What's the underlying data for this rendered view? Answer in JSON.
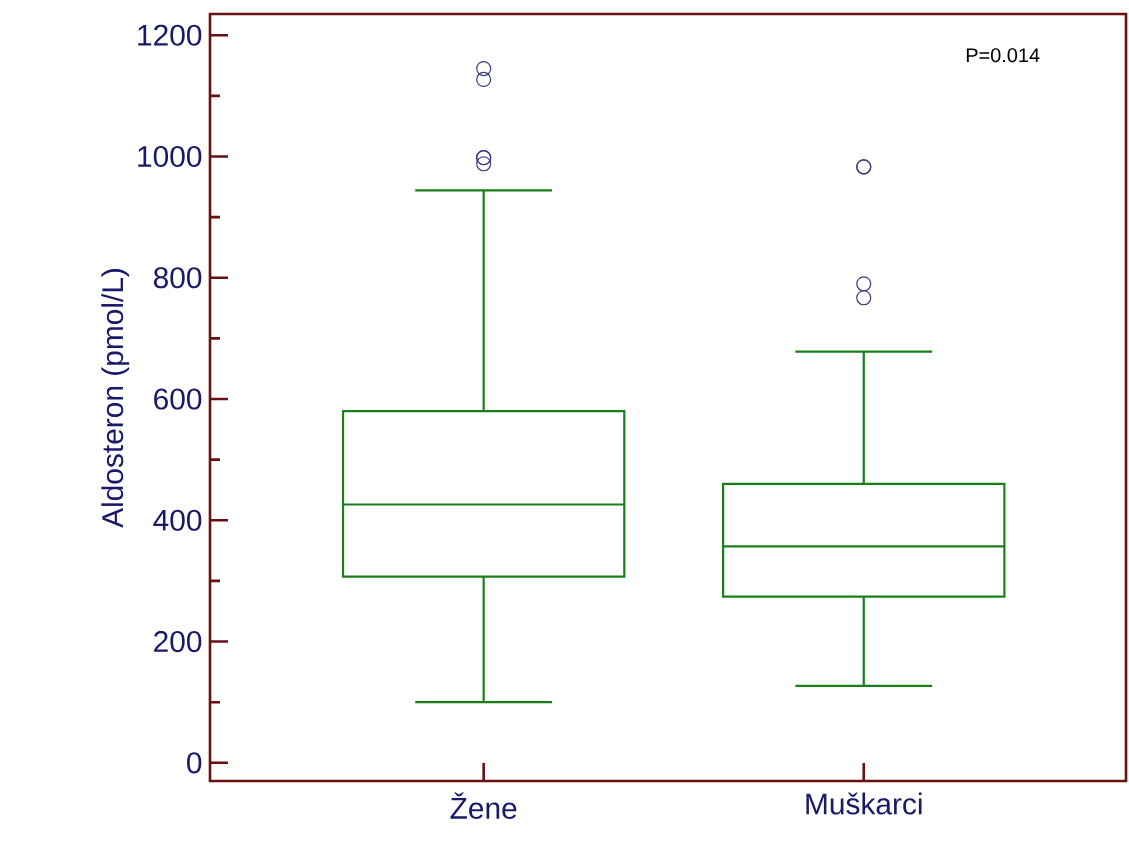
{
  "chart_data": {
    "type": "box",
    "categories": [
      "Žene",
      "Muškarci"
    ],
    "ylabel": "Aldosteron (pmol/L)",
    "annotations": [
      "P=0.014"
    ],
    "ylim": [
      -30,
      1235
    ],
    "yticks": [
      0,
      {
        "value": 100,
        "label": null
      },
      200,
      {
        "value": 300,
        "label": null
      },
      400,
      {
        "value": 500,
        "label": null
      },
      600,
      {
        "value": 700,
        "label": null
      },
      800,
      {
        "value": 900,
        "label": null
      },
      1000,
      {
        "value": 1100,
        "label": null
      },
      1200
    ],
    "series": [
      {
        "color": "#1a7f1a",
        "boxes": [
          {
            "low": 100,
            "q1": 307,
            "median": 426,
            "q3": 580,
            "high": 944,
            "outliers": [
              988,
              998,
              998,
              1127,
              1145
            ]
          },
          {
            "low": 127,
            "q1": 274,
            "median": 357,
            "q3": 460,
            "high": 678,
            "outliers": [
              767,
              790,
              983,
              983
            ]
          }
        ]
      }
    ]
  }
}
